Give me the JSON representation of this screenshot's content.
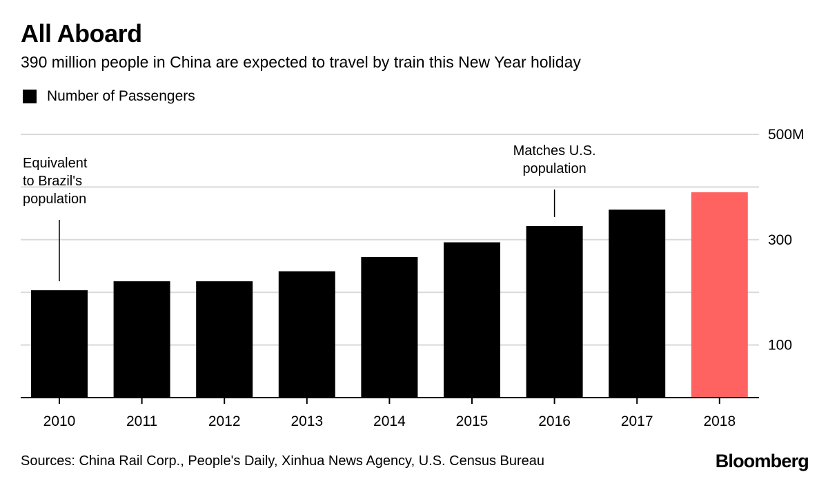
{
  "header": {
    "title": "All Aboard",
    "subtitle": "390 million people in China are expected to travel by train this New Year holiday"
  },
  "legend": {
    "label": "Number of Passengers"
  },
  "colors": {
    "bar": "#000000",
    "highlight": "#ff6361",
    "grid": "#d9d9d9",
    "axis": "#000000"
  },
  "chart_data": {
    "type": "bar",
    "title": "All Aboard",
    "subtitle": "390 million people in China are expected to travel by train this New Year holiday",
    "xlabel": "",
    "ylabel": "Number of Passengers",
    "categories": [
      "2010",
      "2011",
      "2012",
      "2013",
      "2014",
      "2015",
      "2016",
      "2017",
      "2018"
    ],
    "series": [
      {
        "name": "Number of Passengers",
        "values": [
          204,
          221,
          221,
          240,
          267,
          295,
          326,
          357,
          390
        ]
      }
    ],
    "highlight_category": "2018",
    "ylim": [
      0,
      500
    ],
    "yticks": [
      100,
      300,
      500
    ],
    "ytick_labels": [
      "100",
      "300",
      "500M"
    ],
    "gridlines": [
      100,
      200,
      300,
      400,
      500
    ],
    "axis_position": "right",
    "legend_position": "top-left",
    "annotations": [
      {
        "category": "2010",
        "lines": [
          "Equivalent",
          "to Brazil's",
          "population"
        ]
      },
      {
        "category": "2016",
        "lines": [
          "Matches U.S.",
          "population"
        ]
      }
    ]
  },
  "footer": {
    "source": "Sources: China Rail Corp., People's Daily, Xinhua News Agency, U.S. Census Bureau",
    "brand": "Bloomberg"
  }
}
